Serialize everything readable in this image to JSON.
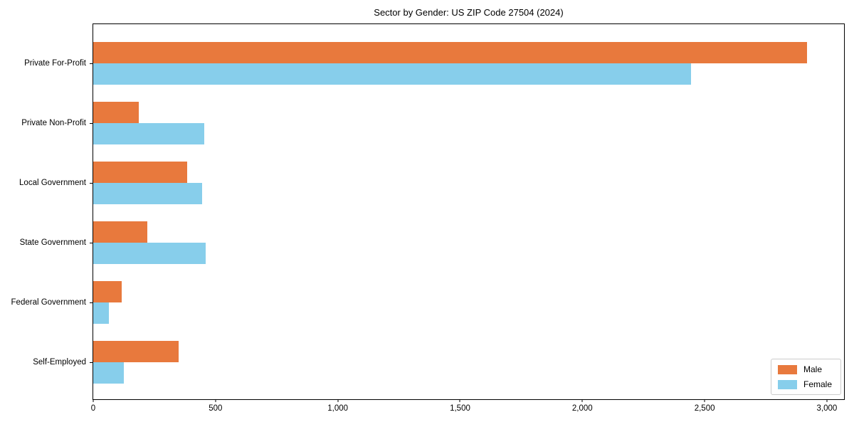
{
  "title": "Sector by Gender: US ZIP Code 27504 (2024)",
  "colors": {
    "male": "#E8793D",
    "female": "#87CEEB",
    "spine": "#000000",
    "legend_border": "#CCCCCC",
    "background": "#FFFFFF"
  },
  "legend": {
    "position": "lower right",
    "items": [
      {
        "label": "Male",
        "color": "#E8793D"
      },
      {
        "label": "Female",
        "color": "#87CEEB"
      }
    ]
  },
  "chart_data": {
    "type": "bar",
    "orientation": "horizontal",
    "title": "Sector by Gender: US ZIP Code 27504 (2024)",
    "categories": [
      "Private For-Profit",
      "Private Non-Profit",
      "Local Government",
      "State Government",
      "Federal Government",
      "Self-Employed"
    ],
    "series": [
      {
        "name": "Male",
        "color": "#E8793D",
        "values": [
          2920,
          185,
          385,
          220,
          115,
          350
        ]
      },
      {
        "name": "Female",
        "color": "#87CEEB",
        "values": [
          2445,
          455,
          445,
          460,
          65,
          125
        ]
      }
    ],
    "xlabel": "",
    "ylabel": "",
    "xlim": [
      0,
      3070
    ],
    "xticks": [
      0,
      500,
      1000,
      1500,
      2000,
      2500,
      3000
    ],
    "xtick_labels": [
      "0",
      "500",
      "1,000",
      "1,500",
      "2,000",
      "2,500",
      "3,000"
    ],
    "grid": false,
    "legend_position": "lower right"
  }
}
